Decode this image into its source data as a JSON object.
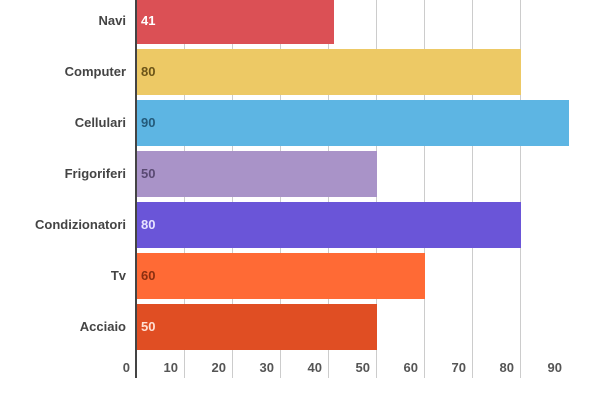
{
  "chart_data": {
    "type": "bar",
    "orientation": "horizontal",
    "title": "",
    "xlabel": "",
    "ylabel": "",
    "categories": [
      "Navi",
      "Computer",
      "Cellulari",
      "Frigoriferi",
      "Condizionatori",
      "Tv",
      "Acciaio"
    ],
    "values": [
      41,
      80,
      90,
      50,
      80,
      60,
      50
    ],
    "colors": [
      "#DB5055",
      "#EDC965",
      "#5DB5E3",
      "#A993C8",
      "#6A55D8",
      "#FF6A35",
      "#E04E23"
    ],
    "value_label_colors": [
      "#ffffff",
      "#6b5418",
      "#245a7a",
      "#5a4a73",
      "#e8e4ff",
      "#8a2f10",
      "#ffe0d4"
    ],
    "xlim": [
      0,
      90
    ],
    "x_ticks": [
      0,
      10,
      20,
      30,
      40,
      50,
      60,
      70,
      80,
      90
    ],
    "grid": true,
    "legend": false
  }
}
